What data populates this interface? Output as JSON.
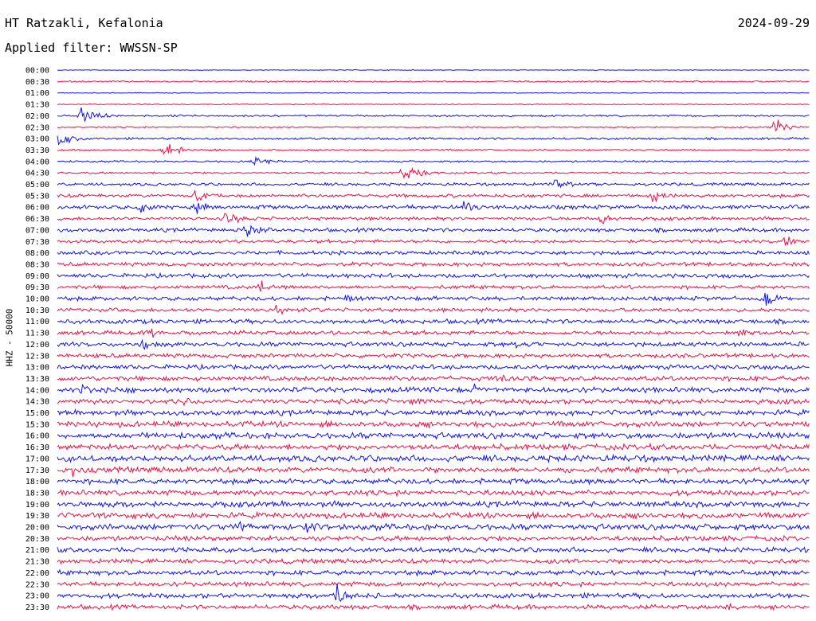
{
  "header": {
    "station": "HT Ratzakli, Kefalonia",
    "date": "2024-09-29",
    "filter": "Applied filter: WWSSN-SP",
    "channel": "HHZ - 50000"
  },
  "colors": {
    "primary": "#1414e6",
    "secondary": "#e8124a"
  },
  "chart_data": {
    "type": "helicorder",
    "title": "HT Ratzakli, Kefalonia",
    "date": "2024-09-29",
    "ylabel": "HHZ - 50000",
    "row_labels": [
      "00:00",
      "00:30",
      "01:00",
      "01:30",
      "02:00",
      "02:30",
      "03:00",
      "03:30",
      "04:00",
      "04:30",
      "05:00",
      "05:30",
      "06:00",
      "06:30",
      "07:00",
      "07:30",
      "08:00",
      "08:30",
      "09:00",
      "09:30",
      "10:00",
      "10:30",
      "11:00",
      "11:30",
      "12:00",
      "12:30",
      "13:00",
      "13:30",
      "14:00",
      "14:30",
      "15:00",
      "15:30",
      "16:00",
      "16:30",
      "17:00",
      "17:30",
      "18:00",
      "18:30",
      "19:00",
      "19:30",
      "20:00",
      "20:30",
      "21:00",
      "21:30",
      "22:00",
      "22:30",
      "23:00",
      "23:30"
    ],
    "row_colors": [
      "primary",
      "secondary"
    ],
    "noise_level": [
      0.4,
      0.8,
      0.4,
      0.5,
      1.0,
      0.8,
      1.2,
      1.0,
      1.0,
      1.0,
      1.5,
      1.8,
      2.2,
      1.8,
      2.0,
      1.8,
      2.0,
      2.0,
      2.2,
      2.0,
      2.2,
      2.0,
      2.4,
      2.2,
      2.4,
      2.2,
      2.4,
      2.6,
      2.8,
      2.6,
      2.8,
      3.0,
      3.2,
      3.0,
      3.4,
      3.0,
      2.8,
      2.8,
      3.0,
      3.0,
      3.2,
      2.6,
      2.6,
      2.4,
      2.6,
      2.4,
      2.6,
      2.4
    ],
    "events": [
      {
        "row": "02:00",
        "position": 0.03,
        "amplitude": 14
      },
      {
        "row": "02:30",
        "position": 0.95,
        "amplitude": 12
      },
      {
        "row": "03:00",
        "position": 0.0,
        "amplitude": 12
      },
      {
        "row": "03:30",
        "position": 0.14,
        "amplitude": 12
      },
      {
        "row": "04:00",
        "position": 0.26,
        "amplitude": 10
      },
      {
        "row": "04:30",
        "position": 0.46,
        "amplitude": 14
      },
      {
        "row": "05:00",
        "position": 0.66,
        "amplitude": 9
      },
      {
        "row": "05:30",
        "position": 0.18,
        "amplitude": 10
      },
      {
        "row": "05:30",
        "position": 0.79,
        "amplitude": 9
      },
      {
        "row": "06:00",
        "position": 0.11,
        "amplitude": 9
      },
      {
        "row": "06:00",
        "position": 0.18,
        "amplitude": 12
      },
      {
        "row": "06:00",
        "position": 0.54,
        "amplitude": 11
      },
      {
        "row": "06:30",
        "position": 0.22,
        "amplitude": 12
      },
      {
        "row": "06:30",
        "position": 0.72,
        "amplitude": 10
      },
      {
        "row": "07:00",
        "position": 0.25,
        "amplitude": 18
      },
      {
        "row": "07:30",
        "position": 0.96,
        "amplitude": 12
      },
      {
        "row": "09:30",
        "position": 0.27,
        "amplitude": 11
      },
      {
        "row": "10:00",
        "position": 0.38,
        "amplitude": 8
      },
      {
        "row": "10:00",
        "position": 0.94,
        "amplitude": 12
      },
      {
        "row": "10:30",
        "position": 0.29,
        "amplitude": 10
      },
      {
        "row": "11:30",
        "position": 0.12,
        "amplitude": 9
      },
      {
        "row": "11:30",
        "position": 0.9,
        "amplitude": 10
      },
      {
        "row": "12:00",
        "position": 0.11,
        "amplitude": 8
      },
      {
        "row": "12:00",
        "position": 0.61,
        "amplitude": 8
      },
      {
        "row": "13:30",
        "position": 0.59,
        "amplitude": 9
      },
      {
        "row": "14:00",
        "position": 0.03,
        "amplitude": 10
      },
      {
        "row": "14:00",
        "position": 0.55,
        "amplitude": 9
      },
      {
        "row": "14:30",
        "position": 0.16,
        "amplitude": 9
      },
      {
        "row": "14:30",
        "position": 0.47,
        "amplitude": 8
      },
      {
        "row": "17:30",
        "position": 0.02,
        "amplitude": 9
      },
      {
        "row": "20:00",
        "position": 0.24,
        "amplitude": 11
      },
      {
        "row": "20:00",
        "position": 0.33,
        "amplitude": 9
      },
      {
        "row": "23:00",
        "position": 0.37,
        "amplitude": 18
      },
      {
        "row": "23:30",
        "position": 0.89,
        "amplitude": 7
      }
    ]
  }
}
